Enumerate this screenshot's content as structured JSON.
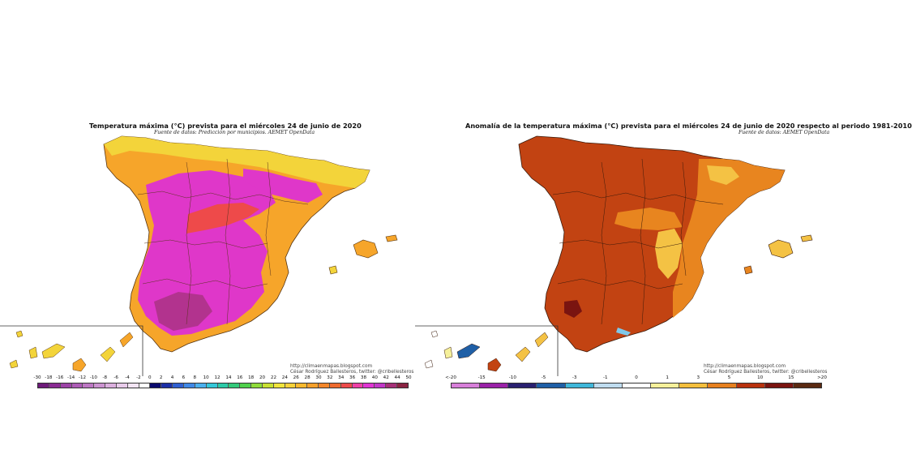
{
  "left_map": {
    "title": "Temperatura máxima (°C) prevista para el miércoles 24 de junio de 2020",
    "source": "Fuente de datos: Predicción por municipios. AEMET OpenData",
    "credit_line1": "http://climaenmapas.blogspot.com",
    "credit_line2": "César Rodríguez Ballesteros, twitter: @cribellesteros",
    "legend": {
      "labels": [
        "-30",
        "-18",
        "-16",
        "-14",
        "-12",
        "-10",
        "-8",
        "-6",
        "-4",
        "-2",
        "0",
        "2",
        "4",
        "6",
        "8",
        "10",
        "12",
        "14",
        "16",
        "18",
        "20",
        "22",
        "24",
        "26",
        "28",
        "30",
        "32",
        "34",
        "36",
        "38",
        "40",
        "42",
        "44",
        "50"
      ],
      "colors": [
        "#6e1b7a",
        "#8a2b93",
        "#9c43a6",
        "#ad5cb6",
        "#bd77c4",
        "#cc93d1",
        "#dbafde",
        "#e8cbea",
        "#f3e5f4",
        "#ffffff",
        "#0a0a6e",
        "#1c2fa6",
        "#2f5fd0",
        "#3f88e6",
        "#4bb0ee",
        "#34c7d8",
        "#2ccba8",
        "#33c97a",
        "#4fd04c",
        "#8fdc3a",
        "#c8e032",
        "#f0e43c",
        "#f7d23a",
        "#f9b92e",
        "#f7a02a",
        "#f3862a",
        "#ee6a2e",
        "#ec4a4a",
        "#ee3fa6",
        "#e034d4",
        "#c238c8",
        "#a63078",
        "#8a2442"
      ]
    }
  },
  "right_map": {
    "title": "Anomalía de la temperatura máxima (°C) prevista para el miércoles 24 de junio de 2020 respecto al periodo 1981-2010",
    "source": "Fuente de datos: AEMET OpenData",
    "credit_line1": "http://climaenmapas.blogspot.com",
    "credit_line2": "César Rodríguez Ballesteros, twitter: @cribellesteros",
    "legend": {
      "labels": [
        "<-20",
        "-15",
        "-10",
        "-5",
        "-3",
        "-1",
        "0",
        "1",
        "3",
        "5",
        "10",
        "15",
        ">20"
      ],
      "colors": [
        "#d77fd9",
        "#9a22a8",
        "#2a2070",
        "#1f5fa6",
        "#3fb6d9",
        "#bfdcef",
        "#ffffff",
        "#f5f09a",
        "#f3be3c",
        "#e6801f",
        "#b8320e",
        "#7a1410",
        "#5a2a12"
      ]
    }
  }
}
